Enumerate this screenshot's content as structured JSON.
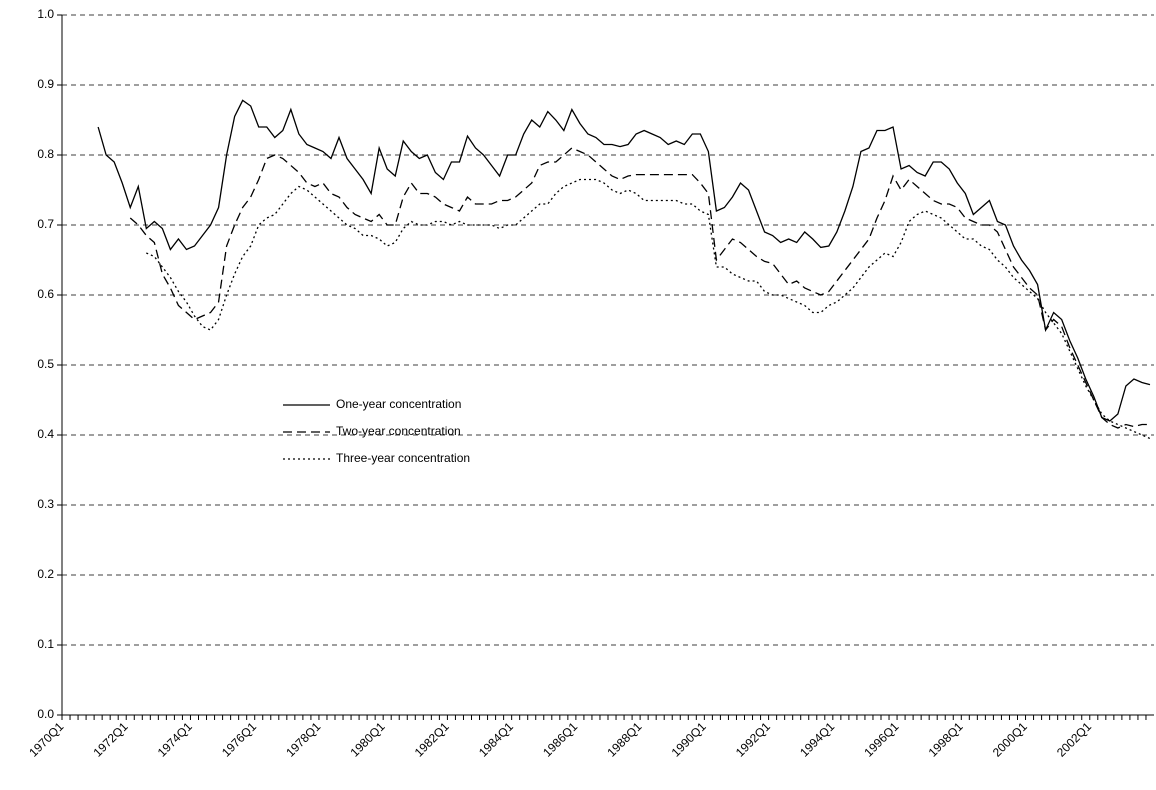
{
  "chart_data": {
    "type": "line",
    "categories": [
      "1970Q1",
      null,
      null,
      null,
      null,
      null,
      null,
      null,
      "1972Q1",
      null,
      null,
      null,
      null,
      null,
      null,
      null,
      "1974Q1",
      null,
      null,
      null,
      null,
      null,
      null,
      null,
      "1976Q1",
      null,
      null,
      null,
      null,
      null,
      null,
      null,
      "1978Q1",
      null,
      null,
      null,
      null,
      null,
      null,
      null,
      "1980Q1",
      null,
      null,
      null,
      null,
      null,
      null,
      null,
      "1982Q1",
      null,
      null,
      null,
      null,
      null,
      null,
      null,
      "1984Q1",
      null,
      null,
      null,
      null,
      null,
      null,
      null,
      "1986Q1",
      null,
      null,
      null,
      null,
      null,
      null,
      null,
      "1988Q1",
      null,
      null,
      null,
      null,
      null,
      null,
      null,
      "1990Q1",
      null,
      null,
      null,
      null,
      null,
      null,
      null,
      "1992Q1",
      null,
      null,
      null,
      null,
      null,
      null,
      null,
      "1994Q1",
      null,
      null,
      null,
      null,
      null,
      null,
      null,
      "1996Q1",
      null,
      null,
      null,
      null,
      null,
      null,
      null,
      "1998Q1",
      null,
      null,
      null,
      null,
      null,
      null,
      null,
      "2000Q1",
      null,
      null,
      null,
      null,
      null,
      null,
      null,
      "2002Q1",
      null,
      null,
      null,
      null,
      null,
      null,
      null
    ],
    "series": [
      {
        "name": "One-year concentration",
        "color": "#000000",
        "style": "solid",
        "values": [
          null,
          null,
          null,
          null,
          0.84,
          0.8,
          0.79,
          0.76,
          0.725,
          0.755,
          0.695,
          0.705,
          0.695,
          0.665,
          0.68,
          0.665,
          0.67,
          0.685,
          0.7,
          0.725,
          0.8,
          0.855,
          0.878,
          0.87,
          0.84,
          0.84,
          0.825,
          0.835,
          0.865,
          0.83,
          0.815,
          0.81,
          0.805,
          0.795,
          0.825,
          0.795,
          0.78,
          0.765,
          0.745,
          0.81,
          0.78,
          0.77,
          0.82,
          0.805,
          0.795,
          0.8,
          0.775,
          0.765,
          0.79,
          0.79,
          0.827,
          0.81,
          0.8,
          0.785,
          0.77,
          0.8,
          0.8,
          0.83,
          0.85,
          0.84,
          0.862,
          0.85,
          0.835,
          0.865,
          0.845,
          0.83,
          0.825,
          0.815,
          0.815,
          0.812,
          0.815,
          0.83,
          0.835,
          0.83,
          0.825,
          0.815,
          0.82,
          0.815,
          0.83,
          0.83,
          0.805,
          0.72,
          0.725,
          0.74,
          0.76,
          0.75,
          0.72,
          0.69,
          0.685,
          0.675,
          0.68,
          0.675,
          0.69,
          0.68,
          0.668,
          0.67,
          0.69,
          0.72,
          0.755,
          0.805,
          0.81,
          0.835,
          0.835,
          0.84,
          0.78,
          0.785,
          0.775,
          0.77,
          0.79,
          0.79,
          0.78,
          0.76,
          0.745,
          0.715,
          0.725,
          0.735,
          0.705,
          0.7,
          0.67,
          0.65,
          0.635,
          0.615,
          0.55,
          0.575,
          0.565,
          0.535,
          0.51,
          0.48,
          0.455,
          0.425,
          0.42,
          0.43,
          0.47,
          0.48,
          0.475,
          0.472
        ]
      },
      {
        "name": "Two-year concentration",
        "color": "#000000",
        "style": "dashed",
        "values": [
          null,
          null,
          null,
          null,
          null,
          null,
          null,
          null,
          0.71,
          0.7,
          0.685,
          0.675,
          0.63,
          0.61,
          0.585,
          0.575,
          0.565,
          0.57,
          0.575,
          0.59,
          0.67,
          0.7,
          0.725,
          0.74,
          0.765,
          0.795,
          0.8,
          0.795,
          0.785,
          0.775,
          0.76,
          0.755,
          0.76,
          0.745,
          0.74,
          0.725,
          0.715,
          0.71,
          0.705,
          0.715,
          0.7,
          0.7,
          0.74,
          0.76,
          0.745,
          0.745,
          0.74,
          0.73,
          0.725,
          0.72,
          0.74,
          0.73,
          0.73,
          0.73,
          0.735,
          0.735,
          0.74,
          0.75,
          0.76,
          0.785,
          0.79,
          0.79,
          0.8,
          0.81,
          0.805,
          0.8,
          0.79,
          0.78,
          0.77,
          0.765,
          0.77,
          0.772,
          0.772,
          0.772,
          0.772,
          0.772,
          0.772,
          0.772,
          0.772,
          0.76,
          0.745,
          0.65,
          0.665,
          0.68,
          0.675,
          0.665,
          0.655,
          0.648,
          0.645,
          0.63,
          0.615,
          0.62,
          0.61,
          0.605,
          0.6,
          0.605,
          0.62,
          0.635,
          0.65,
          0.665,
          0.68,
          0.71,
          0.735,
          0.77,
          0.75,
          0.765,
          0.755,
          0.745,
          0.735,
          0.73,
          0.73,
          0.725,
          0.71,
          0.705,
          0.7,
          0.7,
          0.69,
          0.665,
          0.64,
          0.625,
          0.61,
          0.6,
          0.55,
          0.565,
          0.555,
          0.525,
          0.5,
          0.475,
          0.45,
          0.425,
          0.415,
          0.41,
          0.415,
          0.412,
          0.415,
          0.415
        ]
      },
      {
        "name": "Three-year concentration",
        "color": "#000000",
        "style": "dotted",
        "values": [
          null,
          null,
          null,
          null,
          null,
          null,
          null,
          null,
          null,
          null,
          0.66,
          0.655,
          0.64,
          0.625,
          0.605,
          0.59,
          0.57,
          0.555,
          0.55,
          0.565,
          0.6,
          0.63,
          0.655,
          0.67,
          0.7,
          0.71,
          0.715,
          0.73,
          0.745,
          0.755,
          0.75,
          0.74,
          0.73,
          0.72,
          0.71,
          0.7,
          0.695,
          0.685,
          0.685,
          0.68,
          0.67,
          0.675,
          0.695,
          0.705,
          0.7,
          0.7,
          0.705,
          0.705,
          0.7,
          0.705,
          0.7,
          0.7,
          0.7,
          0.7,
          0.695,
          0.7,
          0.7,
          0.71,
          0.72,
          0.73,
          0.73,
          0.745,
          0.755,
          0.76,
          0.765,
          0.765,
          0.765,
          0.76,
          0.75,
          0.745,
          0.75,
          0.745,
          0.735,
          0.735,
          0.735,
          0.735,
          0.735,
          0.73,
          0.73,
          0.72,
          0.715,
          0.64,
          0.64,
          0.63,
          0.625,
          0.62,
          0.62,
          0.605,
          0.6,
          0.6,
          0.595,
          0.59,
          0.585,
          0.575,
          0.575,
          0.585,
          0.59,
          0.6,
          0.61,
          0.625,
          0.64,
          0.65,
          0.66,
          0.655,
          0.675,
          0.705,
          0.715,
          0.72,
          0.715,
          0.71,
          0.7,
          0.69,
          0.68,
          0.68,
          0.67,
          0.665,
          0.65,
          0.64,
          0.625,
          0.615,
          0.605,
          0.595,
          0.575,
          0.56,
          0.545,
          0.52,
          0.495,
          0.47,
          0.45,
          0.43,
          0.42,
          0.415,
          0.41,
          0.405,
          0.4,
          0.395
        ]
      }
    ],
    "ylim": [
      0,
      1
    ],
    "yticks": [
      {
        "value": 0,
        "label": "0.0"
      },
      0.1,
      0.2,
      0.3,
      0.4,
      0.5,
      0.6,
      0.7,
      0.8,
      0.9,
      {
        "value": 1,
        "label": "1.0"
      }
    ],
    "grid": true
  }
}
